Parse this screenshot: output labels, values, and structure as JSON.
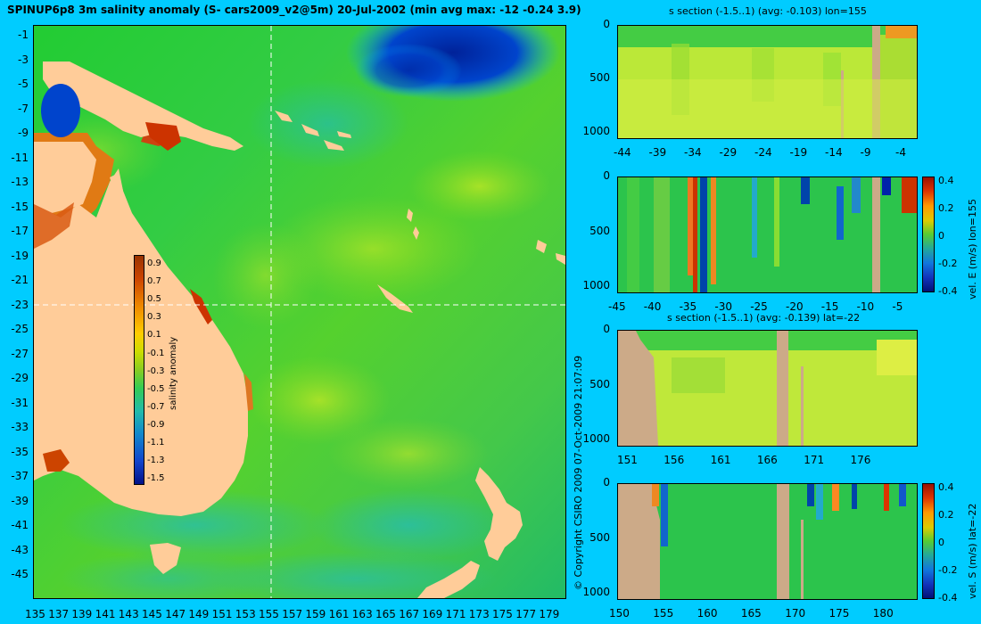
{
  "map": {
    "title": "SPINUP6p8 3m salinity anomaly (S- cars2009_v2@5m) 20-Jul-2002 (min avg max: -12 -0.24 3.9)",
    "lat_ticks": [
      "-1",
      "-3",
      "-5",
      "-7",
      "-9",
      "-11",
      "-13",
      "-15",
      "-17",
      "-19",
      "-21",
      "-23",
      "-25",
      "-27",
      "-29",
      "-31",
      "-33",
      "-35",
      "-37",
      "-39",
      "-41",
      "-43",
      "-45"
    ],
    "lon_ticks": [
      "135",
      "137",
      "139",
      "141",
      "143",
      "145",
      "147",
      "149",
      "151",
      "153",
      "155",
      "157",
      "159",
      "161",
      "163",
      "165",
      "167",
      "169",
      "171",
      "173",
      "175",
      "177",
      "179"
    ],
    "section_lon": "155",
    "section_lat": "-22",
    "colorbar": {
      "label": "salinity anomaly",
      "ticks": [
        "0.9",
        "0.7",
        "0.5",
        "0.3",
        "0.1",
        "-0.1",
        "-0.3",
        "-0.5",
        "-0.7",
        "-0.9",
        "-1.1",
        "-1.3",
        "-1.5"
      ]
    },
    "copyright": "© Copyright CSIRO 2009   07-Oct-2009 21:07:09"
  },
  "panels": {
    "p1": {
      "title": "s section (-1.5..1) (avg: -0.103) lon=155",
      "y_ticks": [
        "0",
        "500",
        "1000"
      ],
      "x_ticks": [
        "-44",
        "-39",
        "-34",
        "-29",
        "-24",
        "-19",
        "-14",
        "-9",
        "-4"
      ]
    },
    "p2": {
      "title": "",
      "y_ticks": [
        "0",
        "500",
        "1000"
      ],
      "x_ticks": [
        "-45",
        "-40",
        "-35",
        "-30",
        "-25",
        "-20",
        "-15",
        "-10",
        "-5"
      ],
      "cbar_ticks": [
        "0.4",
        "0.2",
        "0",
        "-0.2",
        "-0.4"
      ],
      "cbar_label": "vel. E (m/s) lon=155"
    },
    "p3": {
      "title": "s section (-1.5..1) (avg: -0.139) lat=-22",
      "y_ticks": [
        "0",
        "500",
        "1000"
      ],
      "x_ticks": [
        "151",
        "156",
        "161",
        "166",
        "171",
        "176"
      ]
    },
    "p4": {
      "title": "",
      "y_ticks": [
        "0",
        "500",
        "1000"
      ],
      "x_ticks": [
        "150",
        "155",
        "160",
        "165",
        "170",
        "175",
        "180"
      ],
      "cbar_ticks": [
        "0.4",
        "0.2",
        "0",
        "-0.2",
        "-0.4"
      ],
      "cbar_label": "vel. S (m/s) lat=-22"
    }
  },
  "colors": {
    "background": "#00ccff",
    "land": "#ffcc99",
    "section_land": "#ccaa88",
    "ocean_mid": "#33cc33",
    "anomaly_low": "#003399",
    "anomaly_high": "#cc3300"
  }
}
